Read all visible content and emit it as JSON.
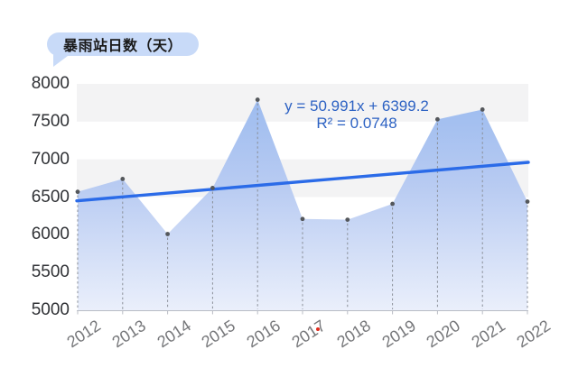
{
  "title": {
    "text": "暴雨站日数（天）"
  },
  "equation": {
    "line1": "y = 50.991x + 6399.2",
    "line2": "R² = 0.0748"
  },
  "chart_data": {
    "type": "area",
    "title": "暴雨站日数（天）",
    "series_name": "暴雨站日数",
    "categories": [
      "2012",
      "2013",
      "2014",
      "2015",
      "2016",
      "2017",
      "2018",
      "2019",
      "2020",
      "2021",
      "2022"
    ],
    "values": [
      6570,
      6740,
      6010,
      6620,
      7790,
      6210,
      6200,
      6410,
      7530,
      7660,
      6440
    ],
    "ylim": [
      5000,
      8000
    ],
    "yticks": [
      8000,
      7500,
      7000,
      6500,
      6000,
      5500,
      5000
    ],
    "xlabel": "",
    "ylabel": "暴雨站日数（天）",
    "grid": "alternating horizontal gray bands",
    "legend": "none",
    "marker": "small gray dots with dashed vertical stems to x-axis",
    "trendline": {
      "type": "linear",
      "slope": 50.991,
      "intercept": 6399.2,
      "r_squared": 0.0748,
      "equation_label": "y = 50.991x + 6399.2",
      "r_squared_label": "R² = 0.0748"
    },
    "annotations": [
      "small red dot printed after the 2017 x-axis label"
    ]
  },
  "colors": {
    "band": "#f3f3f4",
    "area_gradient_top": "#98b9ef",
    "area_gradient_mid": "#b8cbf2",
    "area_gradient_bottom": "#eaeffb",
    "trend_line": "#2b6be8",
    "equation_text": "#2d62c3",
    "bubble_bg": "#c8daf8",
    "bubble_text": "#1a1a1a",
    "axis": "#b9bcc4",
    "stem": "#8a8f98",
    "dot": "#54575b",
    "y_label": "#303236",
    "x_label": "#76777a",
    "red_dot": "#e02b1d"
  }
}
